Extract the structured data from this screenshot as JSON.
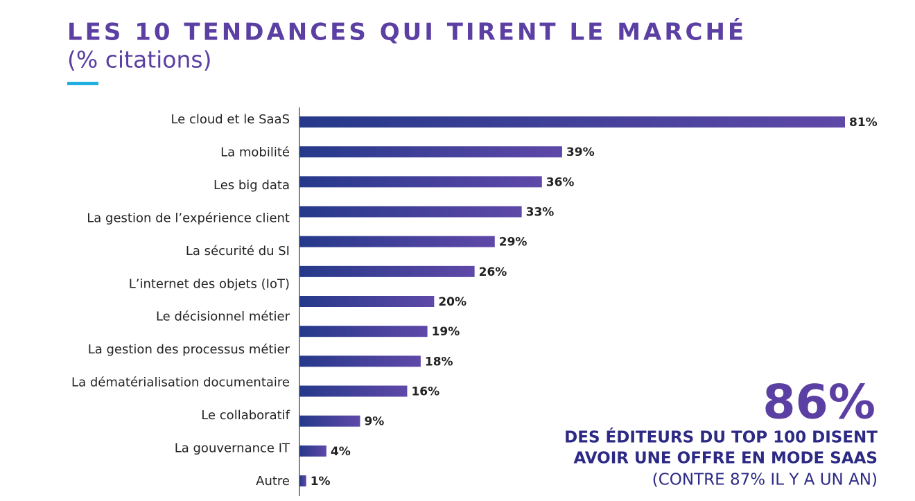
{
  "chart_data": {
    "type": "barh",
    "title": "LES 10 TENDANCES QUI TIRENT LE MARCHÉ",
    "subtitle": "(% citations)",
    "categories": [
      "Le cloud et le SaaS",
      "La mobilité",
      "Les big data",
      "La gestion de l’expérience client",
      "La sécurité du SI",
      "L’internet des objets (IoT)",
      null,
      "Le décisionnel métier",
      "La gestion des processus métier",
      "La dématérialisation documentaire",
      "Le collaboratif",
      "La gouvernance IT",
      "Autre"
    ],
    "values": [
      81,
      39,
      36,
      33,
      29,
      26,
      20,
      19,
      18,
      16,
      9,
      4,
      1
    ],
    "value_labels": [
      "81%",
      "39%",
      "36%",
      "33%",
      "29%",
      "26%",
      "20%",
      "19%",
      "18%",
      "16%",
      "9%",
      "4%",
      "1%"
    ],
    "xlim": [
      0,
      100
    ],
    "gradient": [
      "#25398a",
      "#5f48a8"
    ],
    "callout": {
      "value": "86%",
      "lines": [
        "DES ÉDITEURS DU TOP 100 DISENT",
        "AVOIR UNE OFFRE EN MODE SAAS"
      ],
      "note": "(CONTRE 87% IL Y A UN AN)"
    }
  }
}
